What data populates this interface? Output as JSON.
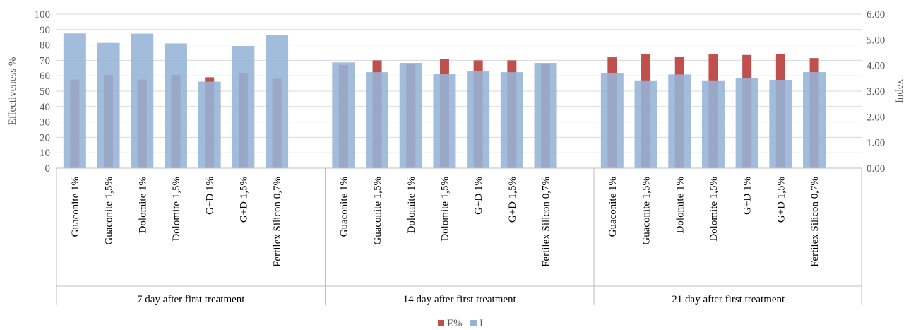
{
  "chart_data": {
    "type": "bar",
    "ylabel": "Effectiveness %",
    "y2label": "Index",
    "ylim": [
      0,
      100
    ],
    "y2lim": [
      0,
      6
    ],
    "yticks": [
      "0",
      "10",
      "20",
      "30",
      "40",
      "50",
      "60",
      "70",
      "80",
      "90",
      "100"
    ],
    "y2ticks": [
      "0.00",
      "1.00",
      "2.00",
      "3.00",
      "4.00",
      "5.00",
      "6.00"
    ],
    "grid": true,
    "legend_position": "bottom",
    "categories": [
      "Guaconite  1%",
      "Guaconite  1,5%",
      "Dolomite  1%",
      "Dolomite  1,5%",
      "G+D 1%",
      "G+D 1,5%",
      "Fertilex Silicon 0,7%",
      "Guaconite  1%",
      "Guaconite  1,5%",
      "Dolomite  1%",
      "Dolomite  1,5%",
      "G+D 1%",
      "G+D 1,5%",
      "Fertilex Silicon 0,7%",
      "Guaconite  1%",
      "Guaconite  1,5%",
      "Dolomite  1%",
      "Dolomite  1,5%",
      "G+D 1%",
      "G+D 1,5%",
      "Fertilex Silicon 0,7%"
    ],
    "groups": [
      {
        "label": "7 day after first treatment",
        "start": 0,
        "count": 7
      },
      {
        "label": "14 day after first treatment",
        "start": 7,
        "count": 7
      },
      {
        "label": "21 day after first treatment",
        "start": 14,
        "count": 7
      }
    ],
    "series": [
      {
        "name": "E%",
        "axis": "left",
        "color": "#C0504D",
        "values": [
          57.5,
          60.5,
          57.5,
          60.5,
          59,
          61.5,
          58,
          67,
          70,
          67.5,
          71,
          70,
          70,
          67.5,
          72,
          74,
          72.5,
          74,
          73.5,
          74,
          71.5
        ]
      },
      {
        "name": "I",
        "axis": "right",
        "color": "#95B3D7",
        "values": [
          5.25,
          4.88,
          5.24,
          4.86,
          3.37,
          4.76,
          5.2,
          4.12,
          3.74,
          4.1,
          3.66,
          3.77,
          3.74,
          4.1,
          3.7,
          3.42,
          3.65,
          3.42,
          3.5,
          3.44,
          3.74
        ]
      }
    ]
  }
}
